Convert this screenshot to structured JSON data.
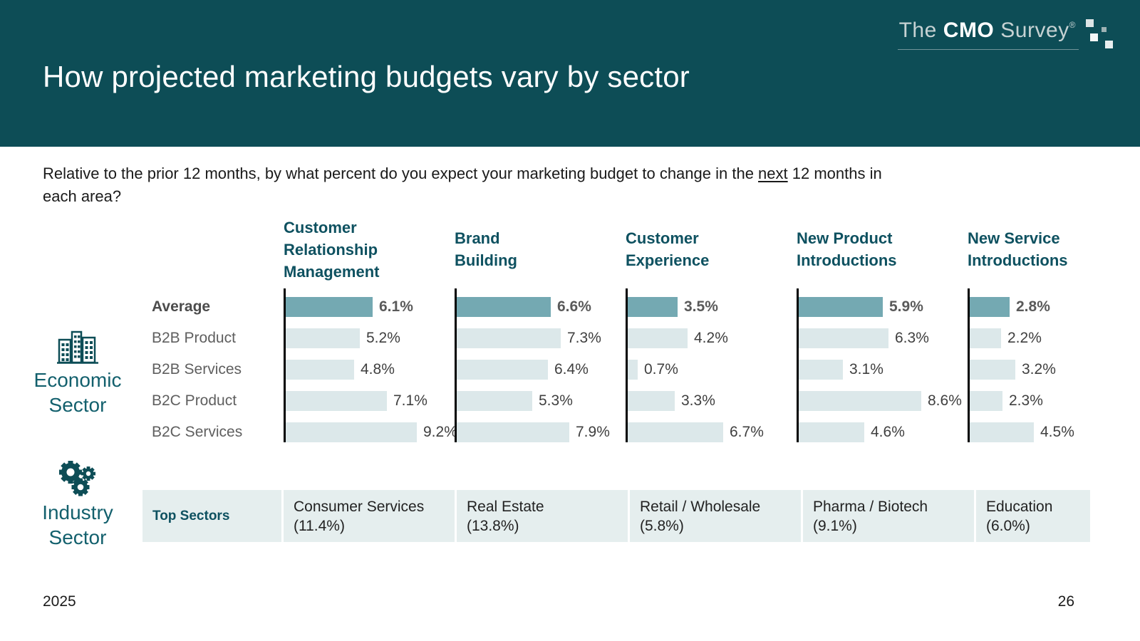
{
  "slide": {
    "title": "How projected marketing budgets vary by sector",
    "footer": {
      "year": "2025",
      "page_number": "26"
    }
  },
  "logo": {
    "the": "The",
    "cmo": "CMO",
    "survey": "Survey",
    "registered": "®"
  },
  "question": {
    "before_underline": "Relative to the prior 12 months, by what percent do you expect your marketing budget to change in the ",
    "underlined": "next",
    "after_underline": " 12 months in",
    "second_line": "each area?"
  },
  "row_group_labels": {
    "economic": {
      "line1": "Economic",
      "line2": "Sector"
    },
    "industry": {
      "line1": "Industry",
      "line2": "Sector"
    }
  },
  "chart_data": {
    "type": "bar",
    "orientation": "horizontal",
    "categories": [
      "Average",
      "B2B Product",
      "B2B Services",
      "B2C Product",
      "B2C Services"
    ],
    "highlight_category": "Average",
    "value_suffix": "%",
    "xlim": [
      0,
      10
    ],
    "grid": false,
    "series": [
      {
        "name": "Customer Relationship Management",
        "header_lines": [
          "Customer",
          "Relationship",
          "Management"
        ],
        "values": [
          6.1,
          5.2,
          4.8,
          7.1,
          9.2
        ]
      },
      {
        "name": "Brand Building",
        "header_lines": [
          "Brand",
          "Building"
        ],
        "values": [
          6.6,
          7.3,
          6.4,
          5.3,
          7.9
        ]
      },
      {
        "name": "Customer Experience",
        "header_lines": [
          "Customer",
          "Experience"
        ],
        "values": [
          3.5,
          4.2,
          0.7,
          3.3,
          6.7
        ]
      },
      {
        "name": "New Product Introductions",
        "header_lines": [
          "New Product",
          "Introductions"
        ],
        "values": [
          5.9,
          6.3,
          3.1,
          8.6,
          4.6
        ]
      },
      {
        "name": "New Service Introductions",
        "header_lines": [
          "New Service",
          "Introductions"
        ],
        "values": [
          2.8,
          2.2,
          3.2,
          2.3,
          4.5
        ]
      }
    ],
    "colors": {
      "highlight_bar": "#74a9b2",
      "bar": "#dce8ea",
      "axis": "#000000"
    }
  },
  "top_sectors": {
    "label": "Top Sectors",
    "cells": [
      {
        "sector": "Consumer Services",
        "value": "(11.4%)"
      },
      {
        "sector": "Real Estate",
        "value": "(13.8%)"
      },
      {
        "sector": "Retail / Wholesale",
        "value": "(5.8%)"
      },
      {
        "sector": "Pharma / Biotech",
        "value": "(9.1%)"
      },
      {
        "sector": "Education",
        "value": "(6.0%)"
      }
    ]
  },
  "colors": {
    "header_background": "#0d4d56",
    "teal_text": "#0e5160",
    "highlight_bar": "#74a9b2",
    "light_bar": "#dce8ea",
    "table_background": "#e5eeee"
  }
}
